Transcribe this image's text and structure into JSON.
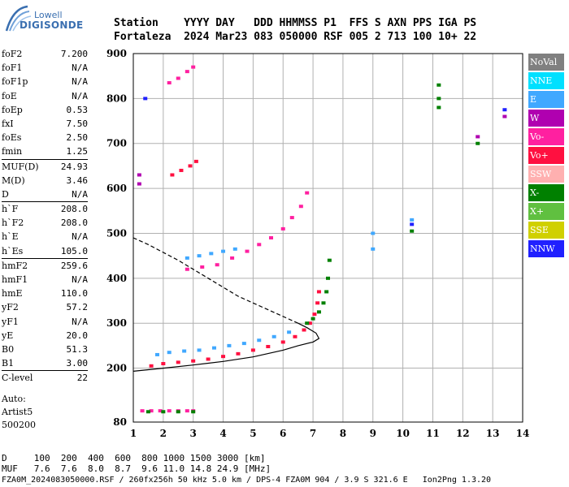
{
  "logo": {
    "line1": "Lowell",
    "line2": "DIGISONDE"
  },
  "header": {
    "line1": "Station    YYYY DAY   DDD HHMMSS P1  FFS S AXN PPS IGA PS",
    "line2": "Fortaleza  2024 Mar23 083 050000 RSF 005 2 713 100 10+ 22"
  },
  "params_group1": [
    {
      "label": "foF2",
      "value": "7.200"
    },
    {
      "label": "foF1",
      "value": "N/A"
    },
    {
      "label": "foF1p",
      "value": "N/A"
    },
    {
      "label": "foE",
      "value": "N/A"
    },
    {
      "label": "foEp",
      "value": "0.53"
    },
    {
      "label": "fxI",
      "value": "7.50"
    },
    {
      "label": "foEs",
      "value": "2.50"
    },
    {
      "label": "fmin",
      "value": "1.25"
    }
  ],
  "params_group2": [
    {
      "label": "MUF(D)",
      "value": "24.93"
    },
    {
      "label": "M(D)",
      "value": "3.46"
    },
    {
      "label": "D",
      "value": "N/A"
    }
  ],
  "params_group3": [
    {
      "label": "h`F",
      "value": "208.0"
    },
    {
      "label": "h`F2",
      "value": "208.0"
    },
    {
      "label": "h`E",
      "value": "N/A"
    },
    {
      "label": "h`Es",
      "value": "105.0"
    }
  ],
  "params_group4": [
    {
      "label": "hmF2",
      "value": "259.6"
    },
    {
      "label": "hmF1",
      "value": "N/A"
    },
    {
      "label": "hmE",
      "value": "110.0"
    },
    {
      "label": "yF2",
      "value": "57.2"
    },
    {
      "label": "yF1",
      "value": "N/A"
    },
    {
      "label": "yE",
      "value": "20.0"
    },
    {
      "label": "B0",
      "value": "51.3"
    },
    {
      "label": "B1",
      "value": "3.00"
    }
  ],
  "params_group5": [
    {
      "label": "C-level",
      "value": "22"
    }
  ],
  "auto": {
    "line1": "Auto:",
    "line2": "Artist5",
    "line3": "500200"
  },
  "legend": [
    {
      "label": "NoVal",
      "color": "#808080"
    },
    {
      "label": "NNE",
      "color": "#00e0ff"
    },
    {
      "label": "E",
      "color": "#40a8ff"
    },
    {
      "label": "W",
      "color": "#b000b0"
    },
    {
      "label": "Vo-",
      "color": "#ff20a0"
    },
    {
      "label": "Vo+",
      "color": "#ff1040"
    },
    {
      "label": "SSW",
      "color": "#ffb0b0"
    },
    {
      "label": "X-",
      "color": "#008000"
    },
    {
      "label": "X+",
      "color": "#60c040"
    },
    {
      "label": "SSE",
      "color": "#d0d000"
    },
    {
      "label": "NNW",
      "color": "#2020ff"
    }
  ],
  "muf_table": {
    "line1": "D     100  200  400  600  800 1000 1500 3000 [km]",
    "line2": "MUF   7.6  7.6  8.0  8.7  9.6 11.0 14.8 24.9 [MHz]"
  },
  "footer": "FZA0M_2024083050000.RSF / 260fx256h 50 kHz 5.0 km / DPS-4 FZA0M 904 / 3.9 S 321.6 E   Ion2Png 1.3.20",
  "chart_data": {
    "type": "scatter",
    "xlim": [
      1,
      14
    ],
    "ylim": [
      80,
      900
    ],
    "x_ticks": [
      1,
      2,
      3,
      4,
      5,
      6,
      7,
      8,
      9,
      10,
      11,
      12,
      13,
      14
    ],
    "y_ticks": [
      80,
      200,
      300,
      400,
      500,
      600,
      700,
      800,
      900
    ],
    "grid": true,
    "profile_solid": [
      [
        1.0,
        193
      ],
      [
        2.0,
        200
      ],
      [
        3.0,
        207
      ],
      [
        4.0,
        215
      ],
      [
        5.0,
        225
      ],
      [
        6.0,
        240
      ],
      [
        6.5,
        250
      ],
      [
        7.0,
        258
      ],
      [
        7.2,
        266
      ],
      [
        7.1,
        278
      ],
      [
        6.8,
        290
      ],
      [
        6.5,
        300
      ]
    ],
    "profile_dashed": [
      [
        6.5,
        300
      ],
      [
        5.5,
        330
      ],
      [
        4.5,
        360
      ],
      [
        3.5,
        400
      ],
      [
        2.5,
        440
      ],
      [
        1.5,
        475
      ],
      [
        1.0,
        490
      ]
    ],
    "clusters": [
      {
        "name": "F2 O-trace",
        "color": "#ff1040",
        "points": [
          [
            1.6,
            205
          ],
          [
            2.0,
            210
          ],
          [
            2.5,
            213
          ],
          [
            3.0,
            216
          ],
          [
            3.5,
            220
          ],
          [
            4.0,
            226
          ],
          [
            4.5,
            232
          ],
          [
            5.0,
            240
          ],
          [
            5.5,
            248
          ],
          [
            6.0,
            258
          ],
          [
            6.4,
            270
          ],
          [
            6.7,
            285
          ],
          [
            6.9,
            300
          ],
          [
            7.05,
            320
          ],
          [
            7.15,
            345
          ],
          [
            7.2,
            370
          ]
        ]
      },
      {
        "name": "F2 oblique E",
        "color": "#40a8ff",
        "points": [
          [
            1.8,
            230
          ],
          [
            2.2,
            235
          ],
          [
            2.7,
            238
          ],
          [
            3.2,
            240
          ],
          [
            3.7,
            245
          ],
          [
            4.2,
            250
          ],
          [
            4.7,
            255
          ],
          [
            5.2,
            262
          ],
          [
            5.7,
            270
          ],
          [
            6.2,
            280
          ]
        ]
      },
      {
        "name": "F2 X-trace",
        "color": "#008000",
        "points": [
          [
            6.8,
            300
          ],
          [
            7.0,
            310
          ],
          [
            7.2,
            325
          ],
          [
            7.35,
            345
          ],
          [
            7.45,
            370
          ],
          [
            7.5,
            400
          ],
          [
            7.55,
            440
          ]
        ]
      },
      {
        "name": "Second hop",
        "color": "#ff20a0",
        "points": [
          [
            2.8,
            420
          ],
          [
            3.3,
            425
          ],
          [
            3.8,
            430
          ],
          [
            4.3,
            445
          ],
          [
            4.8,
            460
          ],
          [
            5.2,
            475
          ],
          [
            5.6,
            490
          ],
          [
            6.0,
            510
          ],
          [
            6.3,
            535
          ],
          [
            6.6,
            560
          ],
          [
            6.8,
            590
          ]
        ]
      },
      {
        "name": "Second hop E",
        "color": "#40a8ff",
        "points": [
          [
            2.8,
            445
          ],
          [
            3.2,
            450
          ],
          [
            3.6,
            455
          ],
          [
            4.0,
            460
          ],
          [
            4.4,
            465
          ]
        ]
      },
      {
        "name": "Third hop",
        "color": "#ff1040",
        "points": [
          [
            2.3,
            630
          ],
          [
            2.6,
            640
          ],
          [
            2.9,
            650
          ],
          [
            3.1,
            660
          ]
        ]
      },
      {
        "name": "Fourth hop",
        "color": "#ff20a0",
        "points": [
          [
            2.2,
            835
          ],
          [
            2.5,
            845
          ],
          [
            2.8,
            860
          ],
          [
            3.0,
            870
          ]
        ]
      },
      {
        "name": "Es layer",
        "color": "#ff20a0",
        "points": [
          [
            1.3,
            105
          ],
          [
            1.6,
            105
          ],
          [
            1.9,
            105
          ],
          [
            2.2,
            105
          ],
          [
            2.5,
            105
          ],
          [
            2.8,
            105
          ],
          [
            3.0,
            105
          ]
        ]
      },
      {
        "name": "Es layer X",
        "color": "#008000",
        "points": [
          [
            1.5,
            103
          ],
          [
            2.0,
            103
          ],
          [
            2.5,
            103
          ],
          [
            3.0,
            103
          ]
        ]
      },
      {
        "name": "Isolated",
        "color": "#008000",
        "points": [
          [
            11.2,
            780
          ],
          [
            11.2,
            800
          ],
          [
            11.2,
            830
          ],
          [
            12.5,
            700
          ],
          [
            10.3,
            505
          ]
        ]
      },
      {
        "name": "Isolated W",
        "color": "#b000b0",
        "points": [
          [
            1.2,
            630
          ],
          [
            1.2,
            610
          ],
          [
            12.5,
            715
          ],
          [
            13.4,
            760
          ]
        ]
      },
      {
        "name": "Isolated NNW",
        "color": "#2020ff",
        "points": [
          [
            1.4,
            800
          ],
          [
            13.4,
            775
          ],
          [
            10.3,
            520
          ]
        ]
      },
      {
        "name": "Isolated E",
        "color": "#40a8ff",
        "points": [
          [
            9.0,
            500
          ],
          [
            9.0,
            465
          ],
          [
            10.3,
            530
          ]
        ]
      }
    ]
  }
}
